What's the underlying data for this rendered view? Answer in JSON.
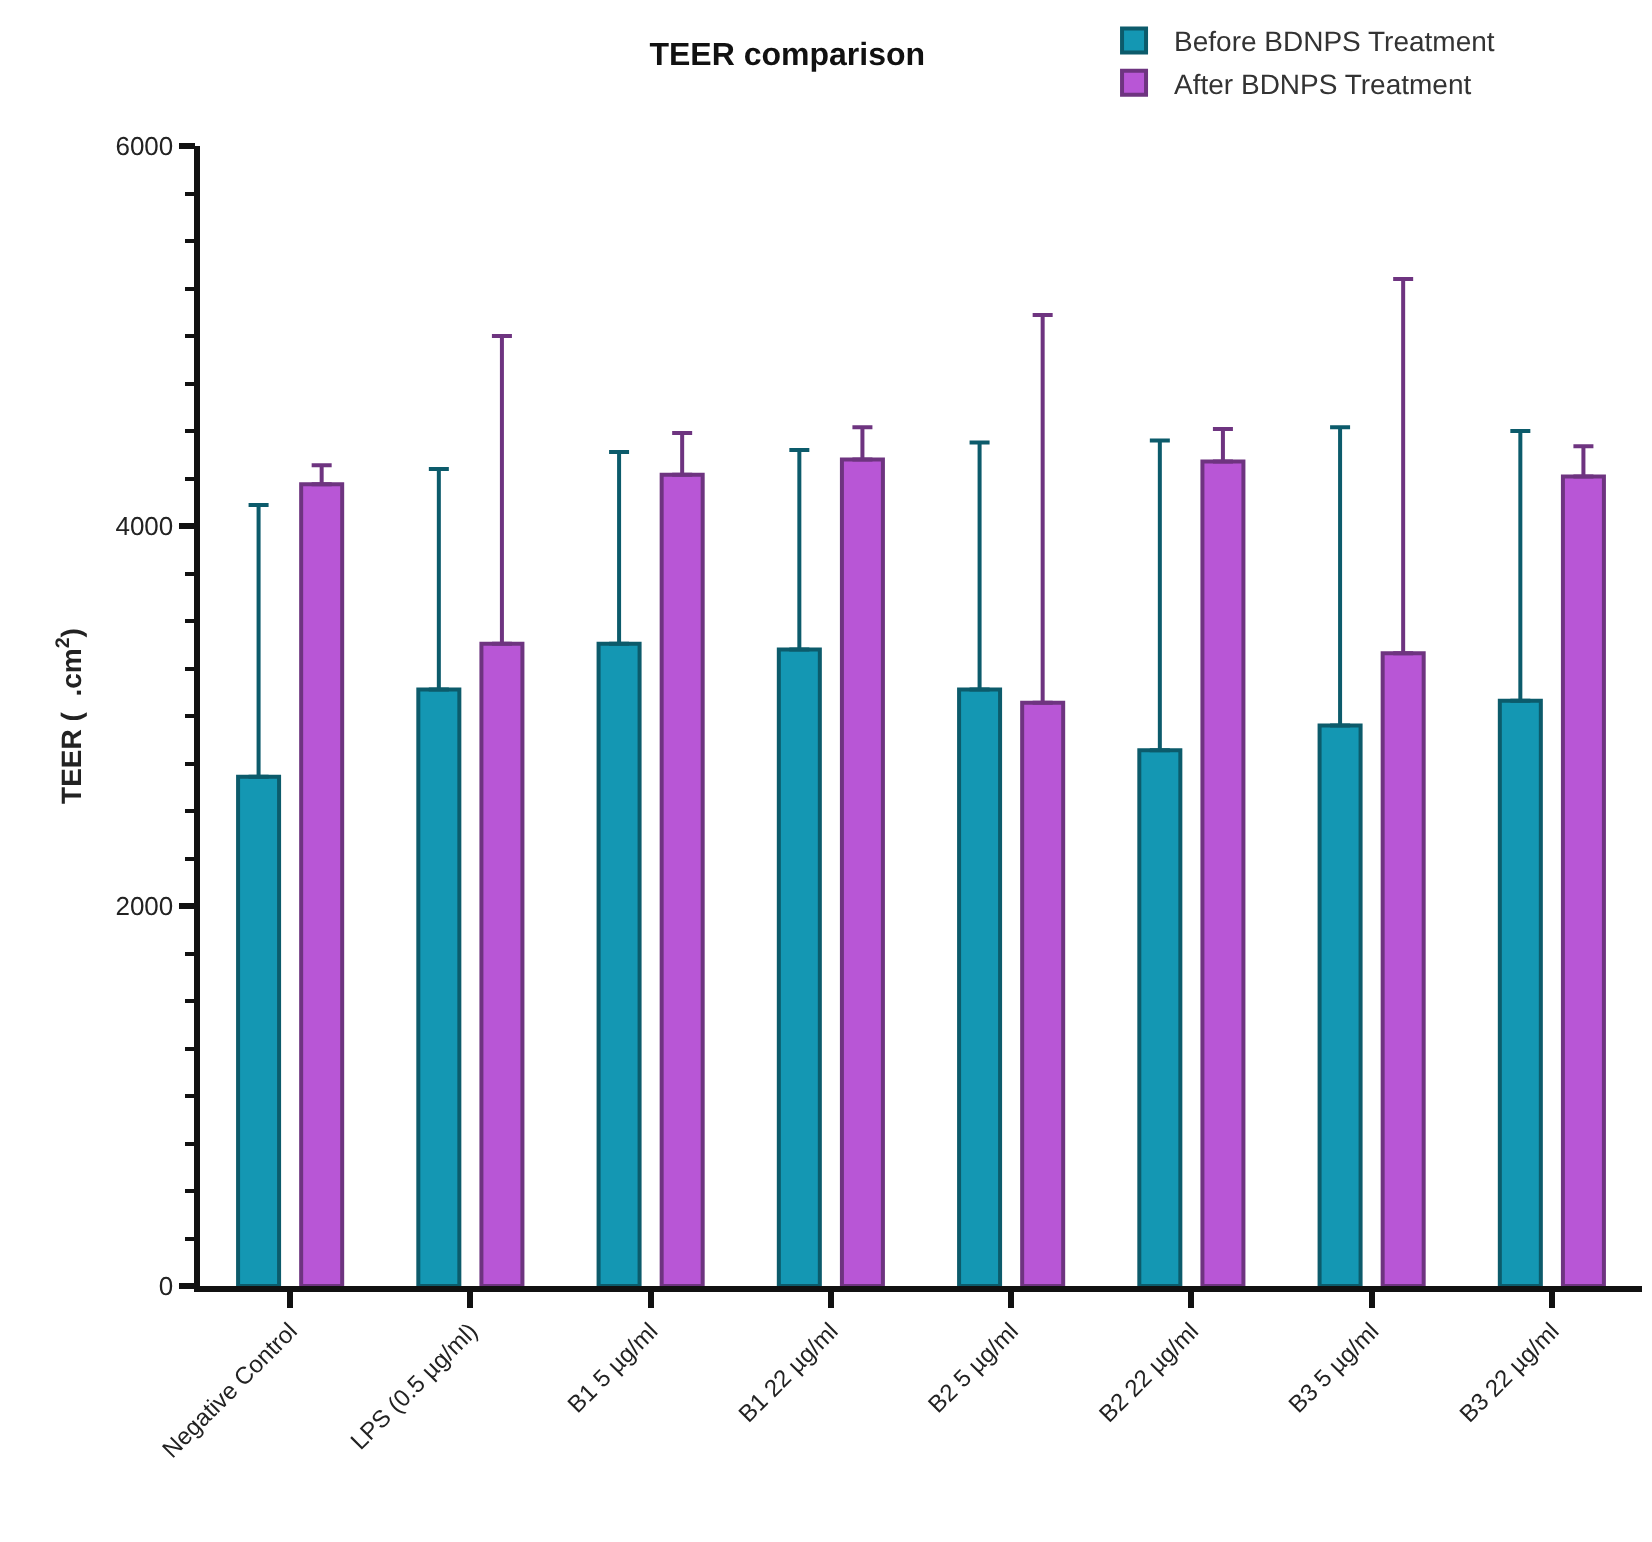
{
  "chart_data": {
    "type": "bar",
    "title": "TEER comparison",
    "ylabel": "TEER (  .cm$^{2}$)",
    "categories": [
      "Negative Control",
      "LPS (0.5 µg/ml)",
      "B1 5 µg/ml",
      "B1 22 µg/ml",
      "B2 5 µg/ml",
      "B2 22 µg/ml",
      "B3 5 µg/ml",
      "B3 22 µg/ml"
    ],
    "series": [
      {
        "name": "Before BDNPS Treatment",
        "color": "#1497b3",
        "values": [
          2680,
          3140,
          3380,
          3350,
          3140,
          2820,
          2950,
          3080
        ],
        "errors": [
          [
            2680,
            4110
          ],
          [
            3140,
            4300
          ],
          [
            3380,
            4390
          ],
          [
            3350,
            4400
          ],
          [
            3140,
            4440
          ],
          [
            2820,
            4450
          ],
          [
            2950,
            4520
          ],
          [
            3080,
            4500
          ]
        ]
      },
      {
        "name": "After BDNPS Treatment",
        "color": "#b856d6",
        "values": [
          4220,
          3380,
          4270,
          4350,
          3070,
          4340,
          3330,
          4260
        ],
        "errors": [
          [
            4220,
            4320
          ],
          [
            3380,
            5000
          ],
          [
            4270,
            4490
          ],
          [
            4350,
            4520
          ],
          [
            3070,
            5110
          ],
          [
            4340,
            4510
          ],
          [
            3330,
            5300
          ],
          [
            4260,
            4420
          ]
        ]
      }
    ],
    "ylim": [
      0,
      6000
    ],
    "yticks": [
      0,
      {
        "value": 250,
        "label": null
      },
      {
        "value": 500,
        "label": null
      },
      {
        "value": 750,
        "label": null
      },
      {
        "value": 1000,
        "label": null
      },
      {
        "value": 1250,
        "label": null
      },
      {
        "value": 1500,
        "label": null
      },
      {
        "value": 1750,
        "label": null
      },
      2000,
      {
        "value": 2250,
        "label": null
      },
      {
        "value": 2500,
        "label": null
      },
      {
        "value": 2750,
        "label": null
      },
      {
        "value": 3000,
        "label": null
      },
      {
        "value": 3250,
        "label": null
      },
      {
        "value": 3500,
        "label": null
      },
      {
        "value": 3750,
        "label": null
      },
      4000,
      {
        "value": 4250,
        "label": null
      },
      {
        "value": 4500,
        "label": null
      },
      {
        "value": 4750,
        "label": null
      },
      {
        "value": 5000,
        "label": null
      },
      {
        "value": 5250,
        "label": null
      },
      {
        "value": 5500,
        "label": null
      },
      {
        "value": 5750,
        "label": null
      },
      6000
    ],
    "grid": false,
    "legend": "top right"
  }
}
